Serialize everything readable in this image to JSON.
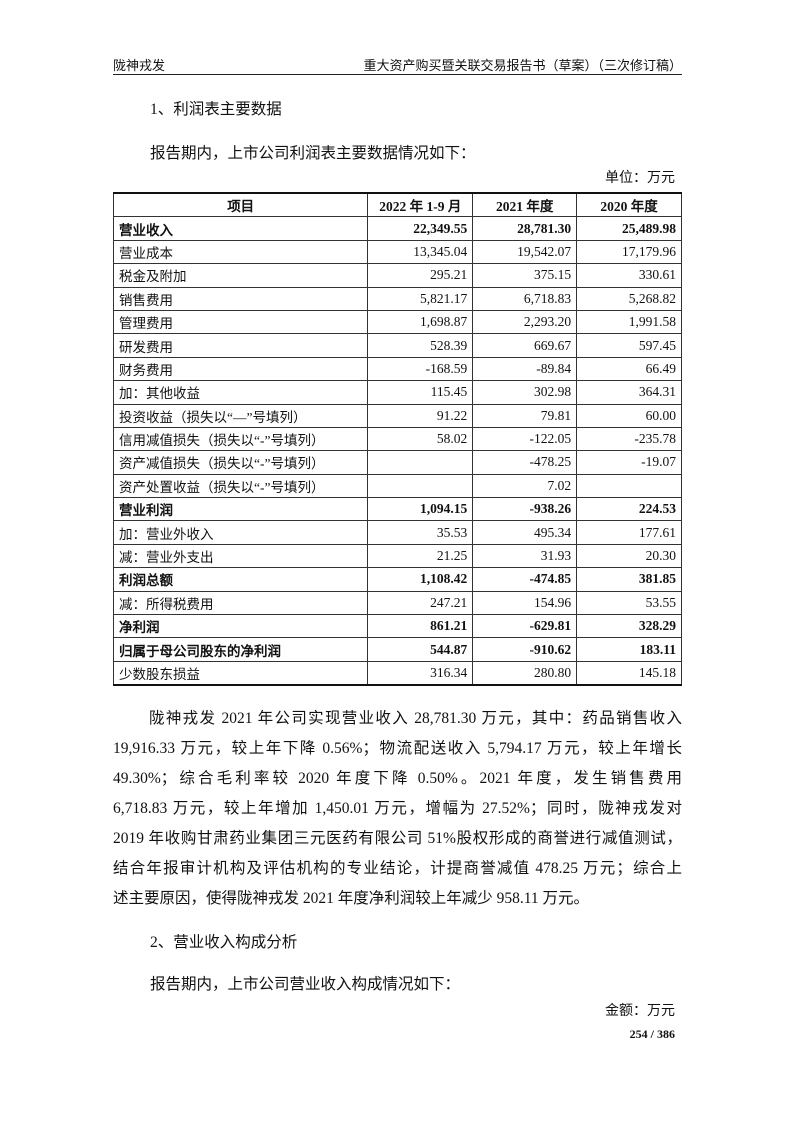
{
  "header": {
    "company": "陇神戎发",
    "doc_title": "重大资产购买暨关联交易报告书（草案）（三次修订稿）"
  },
  "section1": {
    "title": "1、利润表主要数据",
    "intro": "报告期内，上市公司利润表主要数据情况如下：",
    "unit": "单位：万元"
  },
  "table": {
    "headers": [
      "项目",
      "2022 年 1-9 月",
      "2021 年度",
      "2020 年度"
    ],
    "rows": [
      {
        "bold": true,
        "cells": [
          "营业收入",
          "22,349.55",
          "28,781.30",
          "25,489.98"
        ]
      },
      {
        "bold": false,
        "cells": [
          "营业成本",
          "13,345.04",
          "19,542.07",
          "17,179.96"
        ]
      },
      {
        "bold": false,
        "cells": [
          "税金及附加",
          "295.21",
          "375.15",
          "330.61"
        ]
      },
      {
        "bold": false,
        "cells": [
          "销售费用",
          "5,821.17",
          "6,718.83",
          "5,268.82"
        ]
      },
      {
        "bold": false,
        "cells": [
          "管理费用",
          "1,698.87",
          "2,293.20",
          "1,991.58"
        ]
      },
      {
        "bold": false,
        "cells": [
          "研发费用",
          "528.39",
          "669.67",
          "597.45"
        ]
      },
      {
        "bold": false,
        "cells": [
          "财务费用",
          "-168.59",
          "-89.84",
          "66.49"
        ]
      },
      {
        "bold": false,
        "cells": [
          "加：其他收益",
          "115.45",
          "302.98",
          "364.31"
        ]
      },
      {
        "bold": false,
        "cells": [
          "投资收益（损失以“—”号填列）",
          "91.22",
          "79.81",
          "60.00"
        ]
      },
      {
        "bold": false,
        "cells": [
          "信用减值损失（损失以“-”号填列）",
          "58.02",
          "-122.05",
          "-235.78"
        ]
      },
      {
        "bold": false,
        "cells": [
          "资产减值损失（损失以“-”号填列）",
          "",
          "-478.25",
          "-19.07"
        ]
      },
      {
        "bold": false,
        "cells": [
          "资产处置收益（损失以“-”号填列）",
          "",
          "7.02",
          ""
        ]
      },
      {
        "bold": true,
        "cells": [
          "营业利润",
          "1,094.15",
          "-938.26",
          "224.53"
        ]
      },
      {
        "bold": false,
        "cells": [
          "加：营业外收入",
          "35.53",
          "495.34",
          "177.61"
        ]
      },
      {
        "bold": false,
        "cells": [
          "减：营业外支出",
          "21.25",
          "31.93",
          "20.30"
        ]
      },
      {
        "bold": true,
        "cells": [
          "利润总额",
          "1,108.42",
          "-474.85",
          "381.85"
        ]
      },
      {
        "bold": false,
        "cells": [
          "减：所得税费用",
          "247.21",
          "154.96",
          "53.55"
        ]
      },
      {
        "bold": true,
        "cells": [
          "净利润",
          "861.21",
          "-629.81",
          "328.29"
        ]
      },
      {
        "bold": true,
        "cells": [
          "归属于母公司股东的净利润",
          "544.87",
          "-910.62",
          "183.11"
        ]
      },
      {
        "bold": false,
        "cells": [
          "少数股东损益",
          "316.34",
          "280.80",
          "145.18"
        ]
      }
    ]
  },
  "paragraph_lines": [
    "陇神戎发 2021 年公司实现营业收入 28,781.30 万元，其中：药品销售收入",
    "19,916.33 万元，较上年下降 0.56%；物流配送收入 5,794.17 万元，较上年增长",
    "49.30%；综合毛利率较 2020 年度下降 0.50%。2021 年度，发生销售费用",
    "6,718.83 万元，较上年增加 1,450.01 万元，增幅为 27.52%；同时，陇神戎发对",
    "2019 年收购甘肃药业集团三元医药有限公司 51%股权形成的商誉进行减值测试，",
    "结合年报审计机构及评估机构的专业结论，计提商誉减值 478.25 万元；综合上",
    "述主要原因，使得陇神戎发 2021 年度净利润较上年减少 958.11 万元。"
  ],
  "section2": {
    "title": "2、营业收入构成分析",
    "intro": "报告期内，上市公司营业收入构成情况如下：",
    "unit": "金额：万元"
  },
  "footer": {
    "page": "254 / 386"
  }
}
